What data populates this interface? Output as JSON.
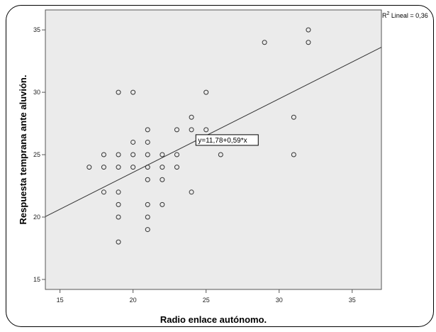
{
  "chart_data": {
    "type": "scatter",
    "title": "",
    "xlabel": "Radio enlace autónomo.",
    "ylabel": "Respuesta temprana ante aluvión.",
    "xlim": [
      14,
      37
    ],
    "ylim": [
      14.2,
      36.6
    ],
    "x_ticks": [
      15,
      20,
      25,
      30,
      35
    ],
    "y_ticks": [
      15,
      20,
      25,
      30,
      35
    ],
    "grid": false,
    "background": "#ebebeb",
    "marker": "open-circle",
    "points": [
      {
        "x": 17,
        "y": 24
      },
      {
        "x": 18,
        "y": 22
      },
      {
        "x": 18,
        "y": 24
      },
      {
        "x": 18,
        "y": 25
      },
      {
        "x": 19,
        "y": 18
      },
      {
        "x": 19,
        "y": 20
      },
      {
        "x": 19,
        "y": 21
      },
      {
        "x": 19,
        "y": 22
      },
      {
        "x": 19,
        "y": 24
      },
      {
        "x": 19,
        "y": 25
      },
      {
        "x": 19,
        "y": 30
      },
      {
        "x": 20,
        "y": 24
      },
      {
        "x": 20,
        "y": 25
      },
      {
        "x": 20,
        "y": 26
      },
      {
        "x": 20,
        "y": 30
      },
      {
        "x": 21,
        "y": 19
      },
      {
        "x": 21,
        "y": 20
      },
      {
        "x": 21,
        "y": 21
      },
      {
        "x": 21,
        "y": 23
      },
      {
        "x": 21,
        "y": 24
      },
      {
        "x": 21,
        "y": 25
      },
      {
        "x": 21,
        "y": 26
      },
      {
        "x": 21,
        "y": 27
      },
      {
        "x": 22,
        "y": 21
      },
      {
        "x": 22,
        "y": 23
      },
      {
        "x": 22,
        "y": 24
      },
      {
        "x": 22,
        "y": 25
      },
      {
        "x": 23,
        "y": 24
      },
      {
        "x": 23,
        "y": 25
      },
      {
        "x": 23,
        "y": 27
      },
      {
        "x": 24,
        "y": 22
      },
      {
        "x": 24,
        "y": 27
      },
      {
        "x": 24,
        "y": 28
      },
      {
        "x": 25,
        "y": 26
      },
      {
        "x": 25,
        "y": 27
      },
      {
        "x": 25,
        "y": 30
      },
      {
        "x": 26,
        "y": 25
      },
      {
        "x": 26,
        "y": 26
      },
      {
        "x": 29,
        "y": 34
      },
      {
        "x": 31,
        "y": 25
      },
      {
        "x": 31,
        "y": 28
      },
      {
        "x": 32,
        "y": 34
      },
      {
        "x": 32,
        "y": 35
      }
    ],
    "fit_line": {
      "intercept": 11.78,
      "slope": 0.59,
      "equation_label": "y=11,78+0,59*x",
      "equation_anchor": {
        "x": 24.3,
        "y": 26.6
      },
      "r2_label": "R",
      "r2_superscript": "2",
      "r2_text": " Lineal = 0,36"
    }
  }
}
